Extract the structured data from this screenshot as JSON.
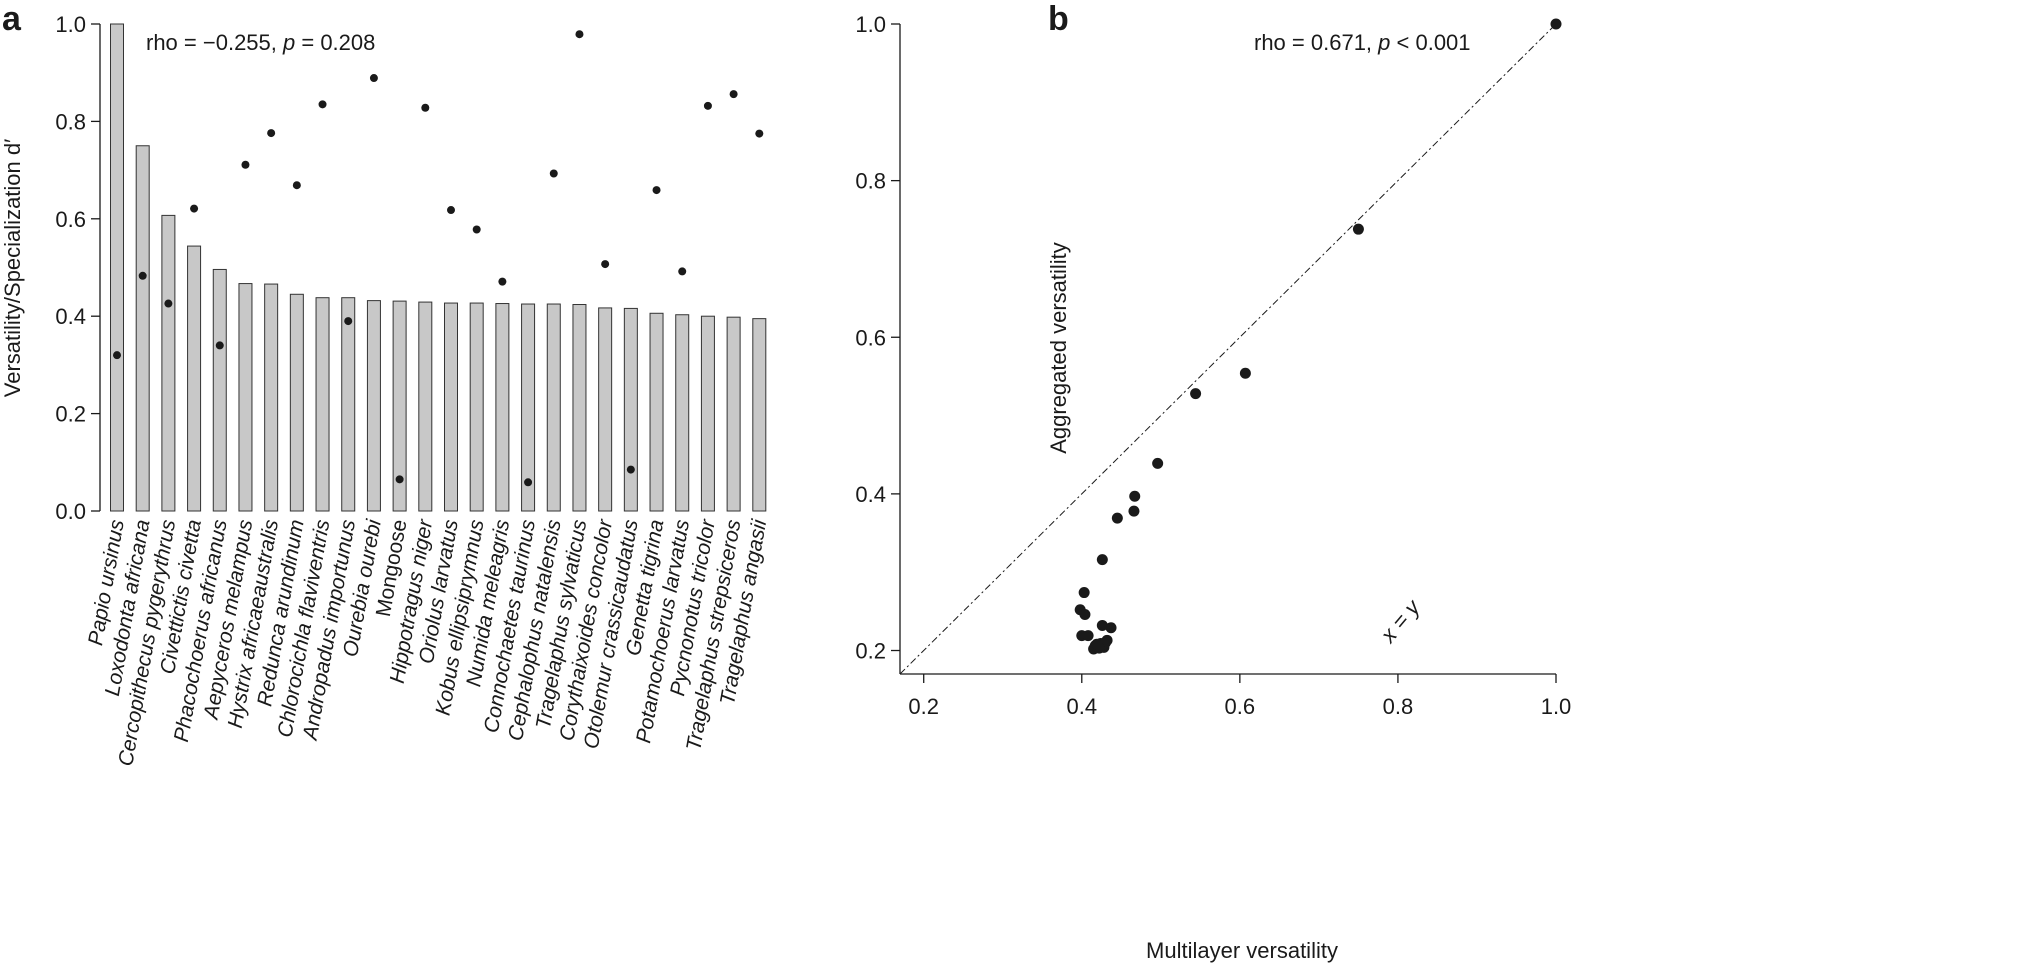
{
  "chart_data": [
    {
      "panel": "a",
      "type": "bar",
      "ylabel": "Versatility/Specialization d′",
      "ylim": [
        0,
        1.0
      ],
      "yticks": [
        "0.0",
        "0.2",
        "0.4",
        "0.6",
        "0.8",
        "1.0"
      ],
      "annotation": {
        "prefix": "rho = −0.255, ",
        "p_symbol": "p",
        "suffix": " = 0.208"
      },
      "categories": [
        {
          "name": "Papio ursinus",
          "italic": true
        },
        {
          "name": "Loxodonta africana",
          "italic": true
        },
        {
          "name": "Cercopithecus pygerythrus",
          "italic": true
        },
        {
          "name": "Civettictis civetta",
          "italic": true
        },
        {
          "name": "Phacochoerus africanus",
          "italic": true
        },
        {
          "name": "Aepyceros melampus",
          "italic": true
        },
        {
          "name": "Hystrix africaeaustralis",
          "italic": true
        },
        {
          "name": "Redunca arundinum",
          "italic": true
        },
        {
          "name": "Chlorocichla flaviventris",
          "italic": true
        },
        {
          "name": "Andropadus importunus",
          "italic": true
        },
        {
          "name": "Ourebia ourebi",
          "italic": true
        },
        {
          "name": "Mongoose",
          "italic": false
        },
        {
          "name": "Hippotragus niger",
          "italic": true
        },
        {
          "name": "Oriolus larvatus",
          "italic": true
        },
        {
          "name": "Kobus ellipsiprymnus",
          "italic": true
        },
        {
          "name": "Numida meleagris",
          "italic": true
        },
        {
          "name": "Connochaetes taurinus",
          "italic": true
        },
        {
          "name": "Cephalophus natalensis",
          "italic": true
        },
        {
          "name": "Tragelaphus sylvaticus",
          "italic": true
        },
        {
          "name": "Corythaixoides concolor",
          "italic": true
        },
        {
          "name": "Otolemur crassicaudatus",
          "italic": true
        },
        {
          "name": "Genetta tigrina",
          "italic": true
        },
        {
          "name": "Potamochoerus larvatus",
          "italic": true
        },
        {
          "name": "Pycnonotus tricolor",
          "italic": true
        },
        {
          "name": "Tragelaphus strepsiceros",
          "italic": true
        },
        {
          "name": "Tragelaphus angasii",
          "italic": true
        }
      ],
      "series": [
        {
          "name": "Versatility",
          "style": "bar",
          "values": [
            1.0,
            0.75,
            0.607,
            0.544,
            0.496,
            0.467,
            0.466,
            0.445,
            0.438,
            0.438,
            0.432,
            0.431,
            0.429,
            0.427,
            0.427,
            0.426,
            0.425,
            0.425,
            0.424,
            0.417,
            0.416,
            0.406,
            0.403,
            0.4,
            0.398,
            0.395
          ]
        },
        {
          "name": "Specialization d′",
          "style": "point",
          "values": [
            0.32,
            0.483,
            0.426,
            0.621,
            0.34,
            0.711,
            0.776,
            0.669,
            0.835,
            0.39,
            0.889,
            0.065,
            0.828,
            0.618,
            0.578,
            0.471,
            0.059,
            0.693,
            0.979,
            0.507,
            0.085,
            0.659,
            0.492,
            0.832,
            0.856,
            0.775
          ]
        }
      ]
    },
    {
      "panel": "b",
      "type": "scatter",
      "xlabel": "Multilayer versatility",
      "ylabel": "Aggregated versatility",
      "xlim": [
        0.17,
        1.0
      ],
      "ylim": [
        0.17,
        1.0
      ],
      "xticks": [
        "0.2",
        "0.4",
        "0.6",
        "0.8",
        "1.0"
      ],
      "yticks": [
        "0.2",
        "0.4",
        "0.6",
        "0.8",
        "1.0"
      ],
      "reference_line": {
        "label": "x = y",
        "style": "dash-dot"
      },
      "annotation": {
        "prefix": "rho = 0.671, ",
        "p_symbol": "p",
        "suffix": " < 0.001"
      },
      "points": [
        {
          "x": 1.0,
          "y": 1.0
        },
        {
          "x": 0.75,
          "y": 0.738
        },
        {
          "x": 0.607,
          "y": 0.554
        },
        {
          "x": 0.544,
          "y": 0.528
        },
        {
          "x": 0.496,
          "y": 0.439
        },
        {
          "x": 0.467,
          "y": 0.397
        },
        {
          "x": 0.466,
          "y": 0.378
        },
        {
          "x": 0.445,
          "y": 0.369
        },
        {
          "x": 0.426,
          "y": 0.316
        },
        {
          "x": 0.403,
          "y": 0.274
        },
        {
          "x": 0.398,
          "y": 0.252
        },
        {
          "x": 0.404,
          "y": 0.246
        },
        {
          "x": 0.4,
          "y": 0.219
        },
        {
          "x": 0.408,
          "y": 0.219
        },
        {
          "x": 0.426,
          "y": 0.232
        },
        {
          "x": 0.437,
          "y": 0.229
        },
        {
          "x": 0.415,
          "y": 0.202
        },
        {
          "x": 0.42,
          "y": 0.205
        },
        {
          "x": 0.424,
          "y": 0.209
        },
        {
          "x": 0.428,
          "y": 0.204
        },
        {
          "x": 0.432,
          "y": 0.213
        },
        {
          "x": 0.417,
          "y": 0.206
        },
        {
          "x": 0.427,
          "y": 0.207
        },
        {
          "x": 0.43,
          "y": 0.21
        },
        {
          "x": 0.422,
          "y": 0.203
        },
        {
          "x": 0.419,
          "y": 0.208
        }
      ]
    }
  ]
}
